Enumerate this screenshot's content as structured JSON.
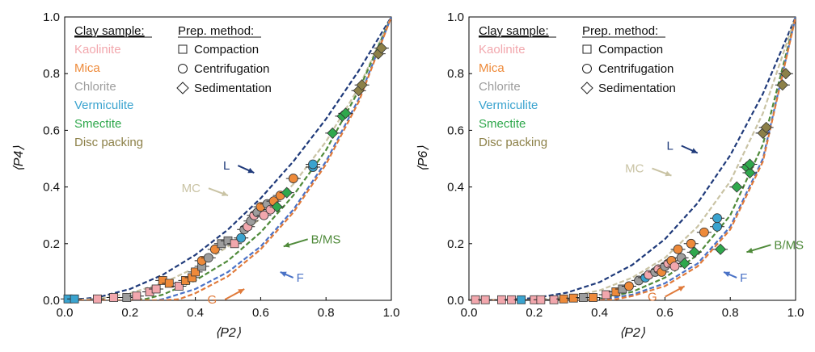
{
  "legend": {
    "clay_header": "Clay sample:",
    "prep_header": "Prep. method:",
    "clay_items": [
      {
        "label": "Kaolinite",
        "color": "#f2a7ad"
      },
      {
        "label": "Mica",
        "color": "#ee8a3a"
      },
      {
        "label": "Chlorite",
        "color": "#9d9d9d"
      },
      {
        "label": "Vermiculite",
        "color": "#3aa3cf"
      },
      {
        "label": "Smectite",
        "color": "#2fa84c"
      },
      {
        "label": "Disc packing",
        "color": "#8c8048"
      }
    ],
    "prep_items": [
      {
        "label": "Compaction",
        "marker": "square"
      },
      {
        "label": "Centrifugation",
        "marker": "circle"
      },
      {
        "label": "Sedimentation",
        "marker": "diamond"
      }
    ]
  },
  "curve_labels": {
    "L": "L",
    "MC": "MC",
    "BMS": "B/MS",
    "F": "F",
    "G": "G"
  },
  "curve_colors": {
    "L": "#1f3a7a",
    "MC": "#c9c3a4",
    "BMS": "#4f8a3a",
    "F": "#4a72c6",
    "G": "#e07a3a"
  },
  "chart_data": [
    {
      "type": "scatter",
      "xlabel": "⟨P2⟩",
      "ylabel": "⟨P4⟩",
      "xlim": [
        0,
        1
      ],
      "ylim": [
        0,
        1
      ],
      "xticks": [
        "0.0",
        "0.2",
        "0.4",
        "0.6",
        "0.8",
        "1.0"
      ],
      "yticks": [
        "0.0",
        "0.2",
        "0.4",
        "0.6",
        "0.8",
        "1.0"
      ],
      "curves": [
        {
          "name": "L",
          "x": [
            0,
            0.1,
            0.2,
            0.3,
            0.4,
            0.5,
            0.6,
            0.7,
            0.8,
            0.9,
            1.0
          ],
          "y": [
            0,
            0.01,
            0.04,
            0.09,
            0.16,
            0.25,
            0.36,
            0.49,
            0.64,
            0.81,
            1.0
          ]
        },
        {
          "name": "MC",
          "x": [
            0,
            0.1,
            0.2,
            0.3,
            0.4,
            0.5,
            0.6,
            0.7,
            0.8,
            0.9,
            1.0
          ],
          "y": [
            0,
            0.005,
            0.025,
            0.06,
            0.115,
            0.19,
            0.29,
            0.41,
            0.56,
            0.75,
            1.0
          ]
        },
        {
          "name": "B/MS",
          "x": [
            0,
            0.2,
            0.25,
            0.3,
            0.4,
            0.5,
            0.6,
            0.7,
            0.8,
            0.9,
            1.0
          ],
          "y": [
            0,
            0,
            0.005,
            0.02,
            0.07,
            0.14,
            0.24,
            0.37,
            0.53,
            0.74,
            1.0
          ]
        },
        {
          "name": "F",
          "x": [
            0,
            0.28,
            0.3,
            0.4,
            0.5,
            0.6,
            0.7,
            0.8,
            0.9,
            1.0
          ],
          "y": [
            0,
            0,
            0.004,
            0.04,
            0.1,
            0.19,
            0.32,
            0.49,
            0.71,
            1.0
          ]
        },
        {
          "name": "G",
          "x": [
            0,
            0.3,
            0.35,
            0.4,
            0.5,
            0.6,
            0.7,
            0.8,
            0.9,
            1.0
          ],
          "y": [
            0,
            0,
            0.004,
            0.025,
            0.085,
            0.18,
            0.31,
            0.48,
            0.7,
            1.0
          ]
        }
      ],
      "annotations": [
        {
          "text": "L",
          "curve": "L",
          "x": 0.58,
          "y": 0.45
        },
        {
          "text": "MC",
          "curve": "MC",
          "x": 0.5,
          "y": 0.37
        },
        {
          "text": "B/MS",
          "curve": "B/MS",
          "x": 0.67,
          "y": 0.19
        },
        {
          "text": "F",
          "curve": "F",
          "x": 0.66,
          "y": 0.1
        },
        {
          "text": "G",
          "curve": "G",
          "x": 0.55,
          "y": 0.04
        }
      ],
      "points": [
        {
          "clay": "Vermiculite",
          "marker": "square",
          "x": 0.01,
          "y": 0.005
        },
        {
          "clay": "Vermiculite",
          "marker": "square",
          "x": 0.03,
          "y": 0.005
        },
        {
          "clay": "Kaolinite",
          "marker": "square",
          "x": 0.1,
          "y": 0.005
        },
        {
          "clay": "Kaolinite",
          "marker": "square",
          "x": 0.15,
          "y": 0.01
        },
        {
          "clay": "Chlorite",
          "marker": "square",
          "x": 0.19,
          "y": 0.01
        },
        {
          "clay": "Kaolinite",
          "marker": "square",
          "x": 0.22,
          "y": 0.015
        },
        {
          "clay": "Kaolinite",
          "marker": "square",
          "x": 0.26,
          "y": 0.03
        },
        {
          "clay": "Kaolinite",
          "marker": "square",
          "x": 0.28,
          "y": 0.04
        },
        {
          "clay": "Mica",
          "marker": "square",
          "x": 0.3,
          "y": 0.07
        },
        {
          "clay": "Mica",
          "marker": "square",
          "x": 0.32,
          "y": 0.06
        },
        {
          "clay": "Kaolinite",
          "marker": "square",
          "x": 0.35,
          "y": 0.05
        },
        {
          "clay": "Mica",
          "marker": "square",
          "x": 0.37,
          "y": 0.07
        },
        {
          "clay": "Mica",
          "marker": "square",
          "x": 0.39,
          "y": 0.08
        },
        {
          "clay": "Mica",
          "marker": "square",
          "x": 0.4,
          "y": 0.1
        },
        {
          "clay": "Chlorite",
          "marker": "square",
          "x": 0.42,
          "y": 0.12
        },
        {
          "clay": "Mica",
          "marker": "circle",
          "x": 0.42,
          "y": 0.14
        },
        {
          "clay": "Chlorite",
          "marker": "circle",
          "x": 0.44,
          "y": 0.15
        },
        {
          "clay": "Mica",
          "marker": "circle",
          "x": 0.46,
          "y": 0.18
        },
        {
          "clay": "Chlorite",
          "marker": "square",
          "x": 0.48,
          "y": 0.2
        },
        {
          "clay": "Chlorite",
          "marker": "square",
          "x": 0.5,
          "y": 0.21
        },
        {
          "clay": "Kaolinite",
          "marker": "square",
          "x": 0.52,
          "y": 0.2
        },
        {
          "clay": "Vermiculite",
          "marker": "circle",
          "x": 0.54,
          "y": 0.22
        },
        {
          "clay": "Chlorite",
          "marker": "circle",
          "x": 0.55,
          "y": 0.25
        },
        {
          "clay": "Kaolinite",
          "marker": "circle",
          "x": 0.56,
          "y": 0.26
        },
        {
          "clay": "Chlorite",
          "marker": "circle",
          "x": 0.57,
          "y": 0.28
        },
        {
          "clay": "Kaolinite",
          "marker": "circle",
          "x": 0.58,
          "y": 0.3
        },
        {
          "clay": "Chlorite",
          "marker": "circle",
          "x": 0.59,
          "y": 0.31
        },
        {
          "clay": "Mica",
          "marker": "circle",
          "x": 0.6,
          "y": 0.33
        },
        {
          "clay": "Kaolinite",
          "marker": "circle",
          "x": 0.61,
          "y": 0.3
        },
        {
          "clay": "Chlorite",
          "marker": "circle",
          "x": 0.62,
          "y": 0.34
        },
        {
          "clay": "Kaolinite",
          "marker": "circle",
          "x": 0.63,
          "y": 0.32
        },
        {
          "clay": "Mica",
          "marker": "circle",
          "x": 0.64,
          "y": 0.35
        },
        {
          "clay": "Smectite",
          "marker": "diamond",
          "x": 0.65,
          "y": 0.33
        },
        {
          "clay": "Mica",
          "marker": "circle",
          "x": 0.66,
          "y": 0.37
        },
        {
          "clay": "Smectite",
          "marker": "diamond",
          "x": 0.68,
          "y": 0.38
        },
        {
          "clay": "Mica",
          "marker": "circle",
          "x": 0.7,
          "y": 0.43
        },
        {
          "clay": "Vermiculite",
          "marker": "circle",
          "x": 0.76,
          "y": 0.47
        },
        {
          "clay": "Vermiculite",
          "marker": "circle",
          "x": 0.76,
          "y": 0.48
        },
        {
          "clay": "Smectite",
          "marker": "diamond",
          "x": 0.82,
          "y": 0.59
        },
        {
          "clay": "Smectite",
          "marker": "diamond",
          "x": 0.85,
          "y": 0.65
        },
        {
          "clay": "Smectite",
          "marker": "diamond",
          "x": 0.86,
          "y": 0.66
        },
        {
          "clay": "Disc packing",
          "marker": "diamond",
          "x": 0.9,
          "y": 0.74
        },
        {
          "clay": "Disc packing",
          "marker": "diamond",
          "x": 0.91,
          "y": 0.76
        },
        {
          "clay": "Disc packing",
          "marker": "diamond",
          "x": 0.96,
          "y": 0.87
        },
        {
          "clay": "Disc packing",
          "marker": "diamond",
          "x": 0.97,
          "y": 0.89
        }
      ]
    },
    {
      "type": "scatter",
      "xlabel": "⟨P2⟩",
      "ylabel": "⟨P6⟩",
      "xlim": [
        0,
        1
      ],
      "ylim": [
        0,
        1
      ],
      "xticks": [
        "0.0",
        "0.2",
        "0.4",
        "0.6",
        "0.8",
        "1.0"
      ],
      "yticks": [
        "0.0",
        "0.2",
        "0.4",
        "0.6",
        "0.8",
        "1.0"
      ],
      "curves": [
        {
          "name": "L",
          "x": [
            0,
            0.1,
            0.2,
            0.3,
            0.4,
            0.5,
            0.6,
            0.7,
            0.8,
            0.9,
            1.0
          ],
          "y": [
            0,
            0.001,
            0.008,
            0.027,
            0.064,
            0.125,
            0.216,
            0.343,
            0.512,
            0.729,
            1.0
          ]
        },
        {
          "name": "MC",
          "x": [
            0,
            0.2,
            0.3,
            0.4,
            0.5,
            0.6,
            0.7,
            0.8,
            0.9,
            1.0
          ],
          "y": [
            0,
            0.002,
            0.012,
            0.035,
            0.08,
            0.15,
            0.26,
            0.42,
            0.66,
            1.0
          ]
        },
        {
          "name": "B/MS",
          "x": [
            0,
            0.35,
            0.4,
            0.5,
            0.6,
            0.7,
            0.8,
            0.9,
            1.0
          ],
          "y": [
            0,
            0,
            0.005,
            0.03,
            0.08,
            0.16,
            0.3,
            0.55,
            1.0
          ]
        },
        {
          "name": "F",
          "x": [
            0,
            0.38,
            0.4,
            0.5,
            0.6,
            0.7,
            0.8,
            0.9,
            1.0
          ],
          "y": [
            0,
            0,
            0.002,
            0.02,
            0.06,
            0.13,
            0.26,
            0.5,
            1.0
          ]
        },
        {
          "name": "G",
          "x": [
            0,
            0.4,
            0.45,
            0.5,
            0.6,
            0.7,
            0.8,
            0.9,
            1.0
          ],
          "y": [
            0,
            0,
            0.004,
            0.015,
            0.05,
            0.12,
            0.25,
            0.49,
            1.0
          ]
        }
      ],
      "annotations": [
        {
          "text": "L",
          "curve": "L",
          "x": 0.7,
          "y": 0.52
        },
        {
          "text": "MC",
          "curve": "MC",
          "x": 0.62,
          "y": 0.44
        },
        {
          "text": "B/MS",
          "curve": "B/MS",
          "x": 0.85,
          "y": 0.17
        },
        {
          "text": "F",
          "curve": "F",
          "x": 0.78,
          "y": 0.1
        },
        {
          "text": "G",
          "curve": "G",
          "x": 0.66,
          "y": 0.05
        }
      ],
      "points": [
        {
          "clay": "Kaolinite",
          "marker": "square",
          "x": 0.02,
          "y": 0.002
        },
        {
          "clay": "Kaolinite",
          "marker": "square",
          "x": 0.05,
          "y": 0.002
        },
        {
          "clay": "Kaolinite",
          "marker": "square",
          "x": 0.1,
          "y": 0.002
        },
        {
          "clay": "Kaolinite",
          "marker": "square",
          "x": 0.13,
          "y": 0.002
        },
        {
          "clay": "Vermiculite",
          "marker": "square",
          "x": 0.16,
          "y": 0.002
        },
        {
          "clay": "Kaolinite",
          "marker": "square",
          "x": 0.2,
          "y": 0.002
        },
        {
          "clay": "Kaolinite",
          "marker": "square",
          "x": 0.22,
          "y": 0.002
        },
        {
          "clay": "Kaolinite",
          "marker": "square",
          "x": 0.26,
          "y": 0.002
        },
        {
          "clay": "Mica",
          "marker": "square",
          "x": 0.29,
          "y": 0.005
        },
        {
          "clay": "Mica",
          "marker": "square",
          "x": 0.32,
          "y": 0.008
        },
        {
          "clay": "Chlorite",
          "marker": "square",
          "x": 0.35,
          "y": 0.01
        },
        {
          "clay": "Mica",
          "marker": "square",
          "x": 0.38,
          "y": 0.01
        },
        {
          "clay": "Kaolinite",
          "marker": "square",
          "x": 0.42,
          "y": 0.02
        },
        {
          "clay": "Mica",
          "marker": "square",
          "x": 0.45,
          "y": 0.03
        },
        {
          "clay": "Chlorite",
          "marker": "square",
          "x": 0.47,
          "y": 0.04
        },
        {
          "clay": "Mica",
          "marker": "circle",
          "x": 0.49,
          "y": 0.05
        },
        {
          "clay": "Chlorite",
          "marker": "circle",
          "x": 0.52,
          "y": 0.07
        },
        {
          "clay": "Vermiculite",
          "marker": "circle",
          "x": 0.54,
          "y": 0.08
        },
        {
          "clay": "Kaolinite",
          "marker": "circle",
          "x": 0.55,
          "y": 0.09
        },
        {
          "clay": "Chlorite",
          "marker": "circle",
          "x": 0.57,
          "y": 0.1
        },
        {
          "clay": "Kaolinite",
          "marker": "circle",
          "x": 0.58,
          "y": 0.11
        },
        {
          "clay": "Mica",
          "marker": "circle",
          "x": 0.59,
          "y": 0.1
        },
        {
          "clay": "Chlorite",
          "marker": "circle",
          "x": 0.6,
          "y": 0.12
        },
        {
          "clay": "Kaolinite",
          "marker": "circle",
          "x": 0.61,
          "y": 0.13
        },
        {
          "clay": "Mica",
          "marker": "circle",
          "x": 0.62,
          "y": 0.14
        },
        {
          "clay": "Kaolinite",
          "marker": "circle",
          "x": 0.63,
          "y": 0.12
        },
        {
          "clay": "Mica",
          "marker": "circle",
          "x": 0.64,
          "y": 0.18
        },
        {
          "clay": "Chlorite",
          "marker": "circle",
          "x": 0.65,
          "y": 0.15
        },
        {
          "clay": "Smectite",
          "marker": "diamond",
          "x": 0.66,
          "y": 0.13
        },
        {
          "clay": "Mica",
          "marker": "circle",
          "x": 0.68,
          "y": 0.2
        },
        {
          "clay": "Smectite",
          "marker": "diamond",
          "x": 0.69,
          "y": 0.17
        },
        {
          "clay": "Mica",
          "marker": "circle",
          "x": 0.72,
          "y": 0.24
        },
        {
          "clay": "Vermiculite",
          "marker": "circle",
          "x": 0.76,
          "y": 0.26
        },
        {
          "clay": "Vermiculite",
          "marker": "circle",
          "x": 0.76,
          "y": 0.29
        },
        {
          "clay": "Smectite",
          "marker": "diamond",
          "x": 0.77,
          "y": 0.18
        },
        {
          "clay": "Smectite",
          "marker": "diamond",
          "x": 0.82,
          "y": 0.4
        },
        {
          "clay": "Smectite",
          "marker": "diamond",
          "x": 0.85,
          "y": 0.47
        },
        {
          "clay": "Smectite",
          "marker": "diamond",
          "x": 0.86,
          "y": 0.45
        },
        {
          "clay": "Smectite",
          "marker": "diamond",
          "x": 0.86,
          "y": 0.48
        },
        {
          "clay": "Disc packing",
          "marker": "diamond",
          "x": 0.9,
          "y": 0.59
        },
        {
          "clay": "Disc packing",
          "marker": "diamond",
          "x": 0.91,
          "y": 0.61
        },
        {
          "clay": "Disc packing",
          "marker": "diamond",
          "x": 0.96,
          "y": 0.76
        },
        {
          "clay": "Disc packing",
          "marker": "diamond",
          "x": 0.97,
          "y": 0.8
        }
      ]
    }
  ]
}
